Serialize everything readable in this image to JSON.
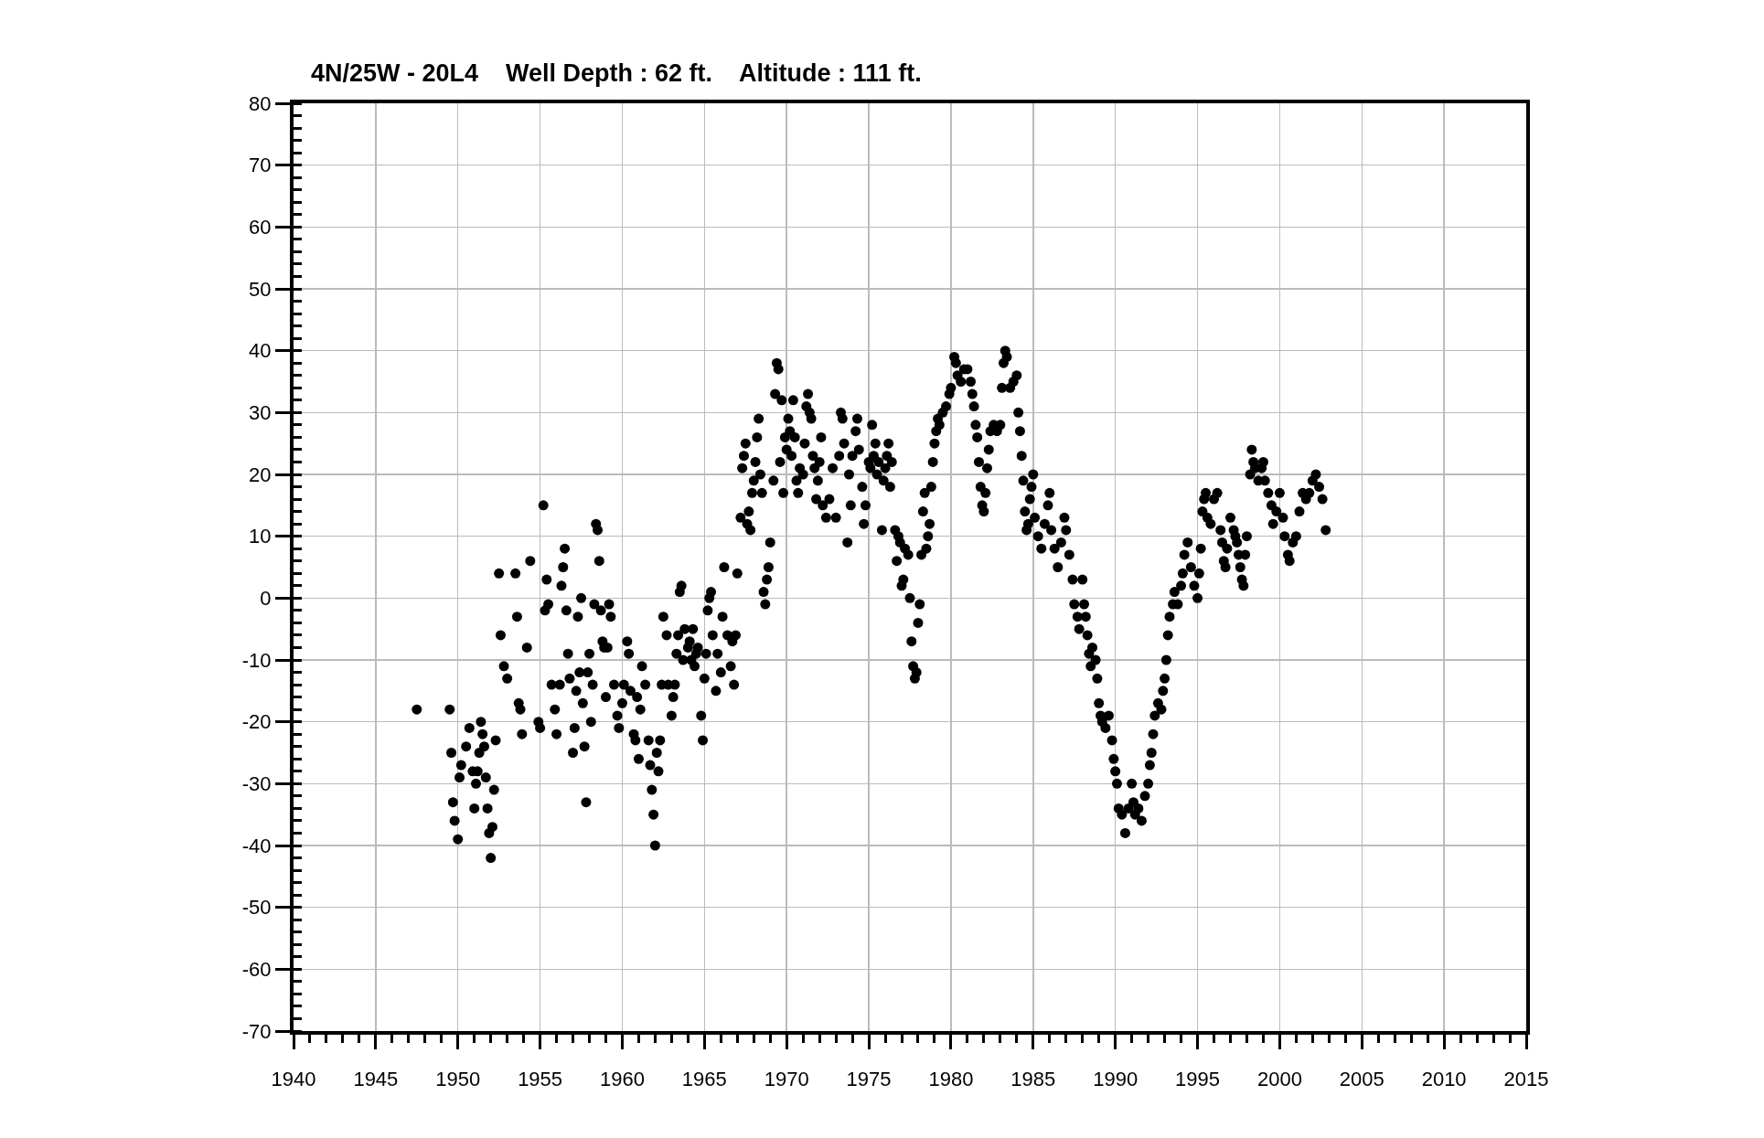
{
  "chart_data": {
    "type": "scatter",
    "title": "4N/25W - 20L4    Well Depth : 62 ft.    Altitude : 111 ft.",
    "xlim": [
      1940,
      2015
    ],
    "xticks": [
      1940,
      1945,
      1950,
      1955,
      1960,
      1965,
      1970,
      1975,
      1980,
      1985,
      1990,
      1995,
      2000,
      2005,
      2010,
      2015
    ],
    "ylim": [
      -70,
      80
    ],
    "yticks": [
      -70,
      -60,
      -50,
      -40,
      -30,
      -20,
      -10,
      0,
      10,
      20,
      30,
      40,
      50,
      60,
      70,
      80
    ],
    "grid": true,
    "marker": "circle",
    "color": "#000000",
    "x": [
      1947.5,
      1949.5,
      1949.6,
      1949.7,
      1949.8,
      1950,
      1950.1,
      1950.2,
      1950.5,
      1950.7,
      1950.9,
      1951,
      1951.1,
      1951.2,
      1951.3,
      1951.4,
      1951.5,
      1951.6,
      1951.7,
      1951.8,
      1951.9,
      1952,
      1952.1,
      1952.2,
      1952.3,
      1952.5,
      1952.6,
      1952.8,
      1953,
      1953.5,
      1953.6,
      1953.7,
      1953.8,
      1953.9,
      1954.2,
      1954.4,
      1954.9,
      1955,
      1955.2,
      1955.3,
      1955.4,
      1955.5,
      1955.7,
      1955.9,
      1956,
      1956.2,
      1956.3,
      1956.4,
      1956.5,
      1956.6,
      1956.7,
      1956.8,
      1957,
      1957.1,
      1957.2,
      1957.3,
      1957.4,
      1957.5,
      1957.6,
      1957.7,
      1957.8,
      1957.9,
      1958,
      1958.1,
      1958.2,
      1958.3,
      1958.4,
      1958.5,
      1958.6,
      1958.7,
      1958.8,
      1958.9,
      1959,
      1959.1,
      1959.2,
      1959.3,
      1959.5,
      1959.7,
      1959.8,
      1960,
      1960.1,
      1960.3,
      1960.4,
      1960.5,
      1960.7,
      1960.8,
      1960.9,
      1961,
      1961.1,
      1961.2,
      1961.4,
      1961.6,
      1961.7,
      1961.8,
      1961.9,
      1962,
      1962.1,
      1962.2,
      1962.3,
      1962.4,
      1962.5,
      1962.7,
      1962.8,
      1963,
      1963.1,
      1963.2,
      1963.3,
      1963.4,
      1963.5,
      1963.6,
      1963.7,
      1963.8,
      1964,
      1964.1,
      1964.2,
      1964.3,
      1964.4,
      1964.5,
      1964.6,
      1964.8,
      1964.9,
      1965,
      1965.1,
      1965.2,
      1965.3,
      1965.4,
      1965.5,
      1965.7,
      1965.8,
      1966,
      1966.1,
      1966.2,
      1966.4,
      1966.6,
      1966.7,
      1966.8,
      1966.9,
      1967,
      1967.2,
      1967.3,
      1967.4,
      1967.5,
      1967.6,
      1967.7,
      1967.8,
      1967.9,
      1968,
      1968.1,
      1968.2,
      1968.3,
      1968.4,
      1968.5,
      1968.6,
      1968.7,
      1968.8,
      1968.9,
      1969,
      1969.2,
      1969.3,
      1969.4,
      1969.5,
      1969.6,
      1969.7,
      1969.8,
      1969.9,
      1970,
      1970.1,
      1970.2,
      1970.3,
      1970.4,
      1970.5,
      1970.6,
      1970.7,
      1970.8,
      1971,
      1971.1,
      1971.2,
      1971.3,
      1971.4,
      1971.5,
      1971.6,
      1971.7,
      1971.8,
      1971.9,
      1972,
      1972.1,
      1972.2,
      1972.4,
      1972.6,
      1972.8,
      1973,
      1973.2,
      1973.3,
      1973.4,
      1973.5,
      1973.7,
      1973.8,
      1973.9,
      1974,
      1974.2,
      1974.3,
      1974.4,
      1974.6,
      1974.7,
      1974.8,
      1975,
      1975.1,
      1975.2,
      1975.3,
      1975.4,
      1975.5,
      1975.6,
      1975.8,
      1975.9,
      1976,
      1976.1,
      1976.2,
      1976.3,
      1976.4,
      1976.6,
      1976.7,
      1976.8,
      1976.9,
      1977,
      1977.1,
      1977.2,
      1977.4,
      1977.5,
      1977.6,
      1977.7,
      1977.8,
      1977.9,
      1978,
      1978.1,
      1978.2,
      1978.3,
      1978.4,
      1978.5,
      1978.6,
      1978.7,
      1978.8,
      1978.9,
      1979,
      1979.1,
      1979.2,
      1979.3,
      1979.5,
      1979.7,
      1979.9,
      1980,
      1980.2,
      1980.3,
      1980.4,
      1980.6,
      1980.8,
      1981,
      1981.2,
      1981.3,
      1981.4,
      1981.5,
      1981.6,
      1981.7,
      1981.8,
      1981.9,
      1982,
      1982.1,
      1982.2,
      1982.3,
      1982.4,
      1982.6,
      1982.8,
      1983,
      1983.1,
      1983.2,
      1983.3,
      1983.4,
      1983.6,
      1983.8,
      1984,
      1984.1,
      1984.2,
      1984.3,
      1984.4,
      1984.5,
      1984.6,
      1984.7,
      1984.8,
      1984.9,
      1985,
      1985.1,
      1985.3,
      1985.5,
      1985.7,
      1985.9,
      1986,
      1986.1,
      1986.3,
      1986.5,
      1986.7,
      1986.9,
      1987,
      1987.2,
      1987.4,
      1987.5,
      1987.7,
      1987.8,
      1988,
      1988.1,
      1988.2,
      1988.3,
      1988.4,
      1988.5,
      1988.6,
      1988.8,
      1988.9,
      1989,
      1989.1,
      1989.2,
      1989.4,
      1989.6,
      1989.8,
      1989.9,
      1990,
      1990.1,
      1990.2,
      1990.4,
      1990.6,
      1990.8,
      1991,
      1991.1,
      1991.2,
      1991.4,
      1991.6,
      1991.8,
      1992,
      1992.1,
      1992.2,
      1992.3,
      1992.4,
      1992.6,
      1992.8,
      1992.9,
      1993,
      1993.1,
      1993.2,
      1993.3,
      1993.5,
      1993.6,
      1993.8,
      1994,
      1994.1,
      1994.2,
      1994.4,
      1994.6,
      1994.8,
      1995,
      1995.1,
      1995.2,
      1995.3,
      1995.4,
      1995.5,
      1995.6,
      1995.8,
      1996,
      1996.2,
      1996.4,
      1996.5,
      1996.6,
      1996.7,
      1996.8,
      1997,
      1997.2,
      1997.3,
      1997.4,
      1997.5,
      1997.6,
      1997.7,
      1997.8,
      1997.9,
      1998,
      1998.2,
      1998.3,
      1998.4,
      1998.5,
      1998.7,
      1998.9,
      1999,
      1999.1,
      1999.3,
      1999.5,
      1999.6,
      1999.8,
      2000,
      2000.2,
      2000.3,
      2000.5,
      2000.6,
      2000.8,
      2001,
      2001.2,
      2001.4,
      2001.6,
      2001.8,
      2002,
      2002.2,
      2002.4,
      2002.6,
      2002.8
    ],
    "values": [
      -18,
      -18,
      -25,
      -33,
      -36,
      -39,
      -29,
      -27,
      -24,
      -21,
      -28,
      -34,
      -30,
      -28,
      -25,
      -20,
      -22,
      -24,
      -29,
      -34,
      -38,
      -42,
      -37,
      -31,
      -23,
      4,
      -6,
      -11,
      -13,
      4,
      -3,
      -17,
      -18,
      -22,
      -8,
      6,
      -20,
      -21,
      15,
      -2,
      3,
      -1,
      -14,
      -18,
      -22,
      -14,
      2,
      5,
      8,
      -2,
      -9,
      -13,
      -25,
      -21,
      -15,
      -3,
      -12,
      0,
      -17,
      -24,
      -33,
      -12,
      -9,
      -20,
      -14,
      -1,
      12,
      11,
      6,
      -2,
      -7,
      -8,
      -16,
      -8,
      -1,
      -3,
      -14,
      -19,
      -21,
      -17,
      -14,
      -7,
      -9,
      -15,
      -22,
      -23,
      -16,
      -26,
      -18,
      -11,
      -14,
      -23,
      -27,
      -31,
      -35,
      -40,
      -25,
      -28,
      -23,
      -14,
      -3,
      -6,
      -14,
      -19,
      -16,
      -14,
      -9,
      -6,
      1,
      2,
      -10,
      -5,
      -8,
      -7,
      -10,
      -5,
      -11,
      -9,
      -8,
      -19,
      -23,
      -13,
      -9,
      -2,
      0,
      1,
      -6,
      -15,
      -9,
      -12,
      -3,
      5,
      -6,
      -11,
      -7,
      -14,
      -6,
      4,
      13,
      21,
      23,
      25,
      12,
      14,
      11,
      17,
      19,
      22,
      26,
      29,
      20,
      17,
      1,
      -1,
      3,
      5,
      9,
      19,
      33,
      38,
      37,
      22,
      32,
      17,
      26,
      24,
      29,
      27,
      23,
      32,
      26,
      19,
      17,
      21,
      20,
      25,
      31,
      33,
      30,
      29,
      23,
      21,
      16,
      19,
      22,
      26,
      15,
      13,
      16,
      21,
      13,
      23,
      30,
      29,
      25,
      9,
      20,
      15,
      23,
      27,
      29,
      24,
      18,
      12,
      15,
      22,
      21,
      28,
      23,
      25,
      20,
      22,
      11,
      19,
      21,
      23,
      25,
      18,
      22,
      11,
      6,
      10,
      9,
      2,
      3,
      8,
      7,
      0,
      -7,
      -11,
      -13,
      -12,
      -4,
      -1,
      7,
      14,
      17,
      8,
      10,
      12,
      18,
      22,
      25,
      27,
      29,
      28,
      30,
      31,
      33,
      34,
      39,
      38,
      36,
      35,
      37,
      37,
      35,
      33,
      31,
      28,
      26,
      22,
      18,
      15,
      14,
      17,
      21,
      24,
      27,
      28,
      27,
      28,
      34,
      38,
      40,
      39,
      34,
      35,
      36,
      30,
      27,
      23,
      19,
      14,
      11,
      12,
      16,
      18,
      20,
      13,
      10,
      8,
      12,
      15,
      17,
      11,
      8,
      5,
      9,
      13,
      11,
      7,
      3,
      -1,
      -3,
      -5,
      3,
      -1,
      -3,
      -6,
      -9,
      -11,
      -8,
      -10,
      -13,
      -17,
      -19,
      -20,
      -21,
      -19,
      -23,
      -26,
      -28,
      -30,
      -34,
      -35,
      -38,
      -34,
      -30,
      -33,
      -35,
      -34,
      -36,
      -32,
      -30,
      -27,
      -25,
      -22,
      -19,
      -17,
      -18,
      -15,
      -13,
      -10,
      -6,
      -3,
      -1,
      1,
      -1,
      2,
      4,
      7,
      9,
      5,
      2,
      0,
      4,
      8,
      14,
      16,
      17,
      13,
      12,
      16,
      17,
      11,
      9,
      6,
      5,
      8,
      13,
      11,
      10,
      9,
      7,
      5,
      3,
      2,
      7,
      10,
      20,
      24,
      22,
      21,
      19,
      21,
      22,
      19,
      17,
      15,
      12,
      14,
      17,
      13,
      10,
      7,
      6,
      9,
      10,
      14,
      17,
      16,
      17,
      19,
      20,
      18,
      16,
      11
    ]
  }
}
